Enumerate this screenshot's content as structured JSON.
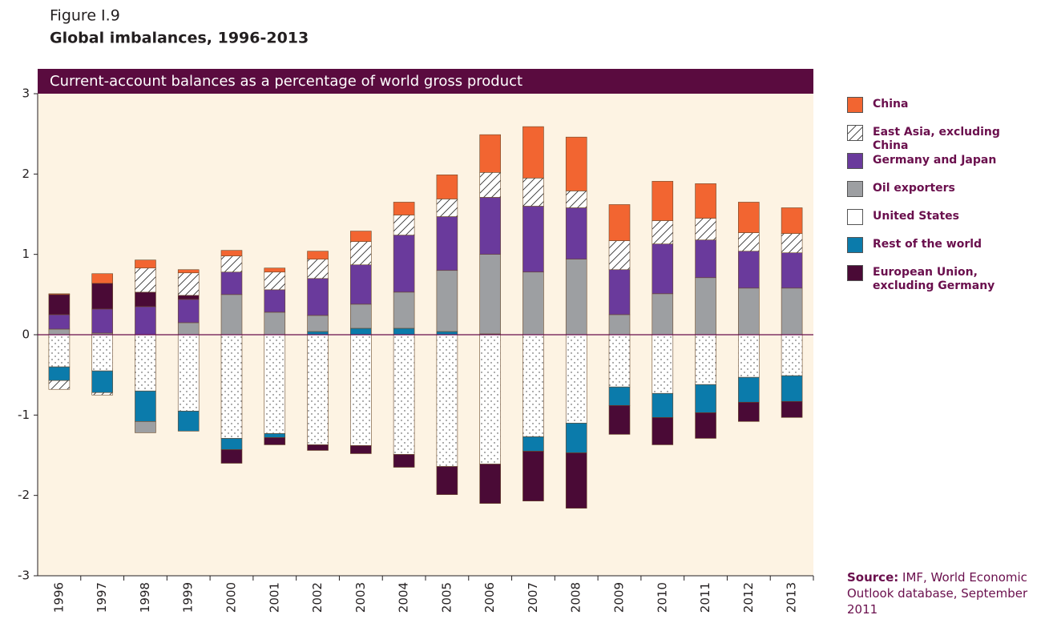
{
  "figure_label": "Figure I.9",
  "chart_data": {
    "type": "stacked-bar",
    "title": "Global imbalances, 1996-2013",
    "subtitle": "Current-account balances as a percentage of world gross product",
    "categories": [
      "1996",
      "1997",
      "1998",
      "1999",
      "2000",
      "2001",
      "2002",
      "2003",
      "2004",
      "2005",
      "2006",
      "2007",
      "2008",
      "2009",
      "2010",
      "2011",
      "2012",
      "2013"
    ],
    "series": [
      {
        "name": "China",
        "color": "#f26531",
        "values": [
          0.01,
          0.12,
          0.1,
          0.04,
          0.07,
          0.05,
          0.1,
          0.13,
          0.16,
          0.3,
          0.47,
          0.64,
          0.67,
          0.45,
          0.49,
          0.43,
          0.38,
          0.32
        ]
      },
      {
        "name": "East Asia, excluding China",
        "color": "#ffffff",
        "pattern": "hatch",
        "values": [
          -0.11,
          -0.03,
          0.3,
          0.28,
          0.2,
          0.22,
          0.24,
          0.29,
          0.25,
          0.22,
          0.31,
          0.35,
          0.21,
          0.36,
          0.29,
          0.27,
          0.23,
          0.24
        ]
      },
      {
        "name": "Germany and Japan",
        "color": "#6a3a9c",
        "values": [
          0.18,
          0.3,
          0.35,
          0.29,
          0.28,
          0.28,
          0.46,
          0.49,
          0.71,
          0.67,
          0.71,
          0.82,
          0.64,
          0.56,
          0.62,
          0.47,
          0.46,
          0.44
        ]
      },
      {
        "name": "Oil exporters",
        "color": "#9d9fa2",
        "values": [
          0.07,
          0.02,
          -0.14,
          0.15,
          0.5,
          0.28,
          0.2,
          0.3,
          0.45,
          0.76,
          0.99,
          0.78,
          0.94,
          0.25,
          0.51,
          0.71,
          0.58,
          0.58
        ]
      },
      {
        "name": "United States",
        "color": "#ffffff",
        "pattern": "dots",
        "values": [
          -0.4,
          -0.45,
          -0.7,
          -0.95,
          -1.29,
          -1.23,
          -1.37,
          -1.38,
          -1.49,
          -1.64,
          -1.61,
          -1.27,
          -1.1,
          -0.65,
          -0.73,
          -0.62,
          -0.53,
          -0.51
        ]
      },
      {
        "name": "Rest of the world",
        "color": "#0b7bab",
        "values": [
          -0.17,
          -0.27,
          -0.38,
          -0.25,
          -0.14,
          -0.05,
          0.04,
          0.08,
          0.08,
          0.04,
          0.01,
          -0.18,
          -0.37,
          -0.23,
          -0.3,
          -0.35,
          -0.31,
          -0.32
        ]
      },
      {
        "name": "European Union, excluding Germany",
        "color": "#4a0a36",
        "values": [
          0.25,
          0.32,
          0.18,
          0.05,
          -0.17,
          -0.09,
          -0.07,
          -0.1,
          -0.16,
          -0.35,
          -0.49,
          -0.62,
          -0.69,
          -0.36,
          -0.34,
          -0.32,
          -0.24,
          -0.2
        ]
      }
    ],
    "ylim": [
      -3,
      3
    ],
    "yticks": [
      -3,
      -2,
      -1,
      0,
      1,
      2,
      3
    ],
    "legend": "right"
  },
  "source": {
    "label": "Source:",
    "text": "IMF, World Economic Outlook database, September 2011"
  }
}
